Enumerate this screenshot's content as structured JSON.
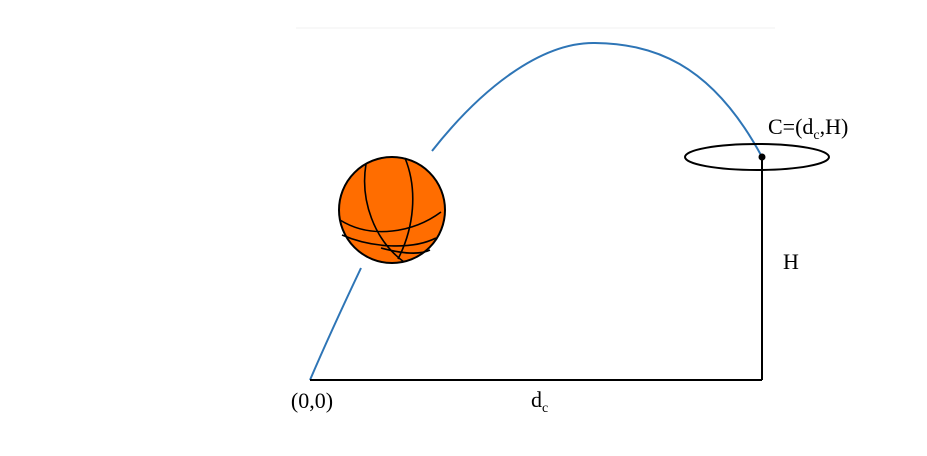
{
  "diagram": {
    "origin_label": "(0,0)",
    "distance_label": "d",
    "distance_subscript": "c",
    "height_label": "H",
    "target_label": {
      "prefix": "C=(d",
      "subscript": "c",
      "suffix": ",H)"
    }
  },
  "colors": {
    "trajectory": "#2E75B6",
    "ball_fill": "#FF6D00",
    "ball_seams": "#000000",
    "lines": "#000000",
    "top_rule": "#f0f0f0"
  },
  "icons": {
    "ball": "basketball-icon",
    "hoop": "hoop-rim-icon"
  }
}
